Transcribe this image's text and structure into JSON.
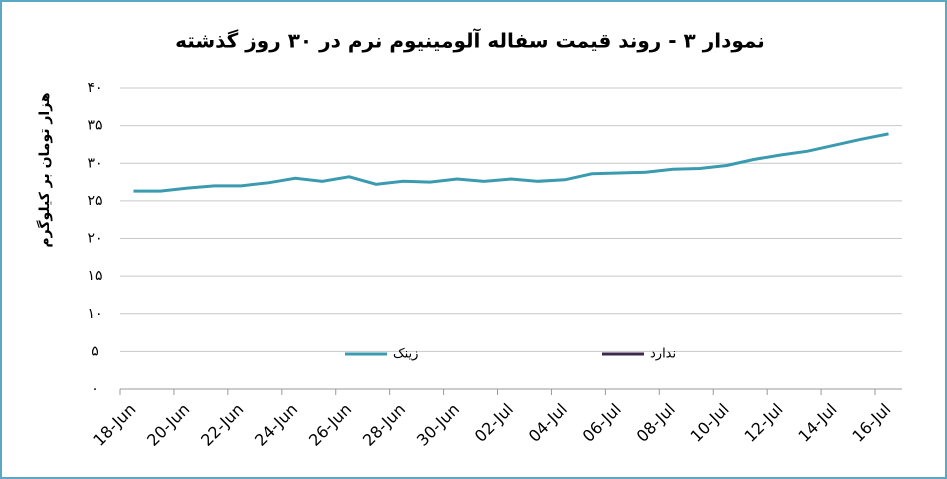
{
  "chart_data": {
    "type": "line",
    "title": "نمودار ۳ - روند قیمت سفاله آلومینیوم نرم در ۳۰ روز گذشته",
    "y_label": "هزار تومان بر کیلوگرم",
    "categories": [
      "18-Jun",
      null,
      "20-Jun",
      null,
      "22-Jun",
      null,
      "24-Jun",
      null,
      "26-Jun",
      null,
      "28-Jun",
      null,
      "30-Jun",
      null,
      "02-Jul",
      null,
      "04-Jul",
      null,
      "06-Jul",
      null,
      "08-Jul",
      null,
      "10-Jul",
      null,
      "12-Jul",
      null,
      "14-Jul",
      null,
      "16-Jul"
    ],
    "series": [
      {
        "name": "زینک",
        "color": "#3a9bb0",
        "values": [
          26.3,
          26.3,
          26.7,
          27.0,
          27.0,
          27.4,
          28.0,
          27.6,
          28.2,
          27.2,
          27.6,
          27.5,
          27.9,
          27.6,
          27.9,
          27.6,
          27.8,
          28.6,
          28.7,
          28.8,
          29.2,
          29.3,
          29.7,
          30.5,
          31.1,
          31.6,
          32.4,
          33.2,
          33.9
        ]
      },
      {
        "name": "ندارد",
        "color": "#3b2a4e",
        "values": [
          null,
          null,
          null,
          null,
          null,
          null,
          null,
          null,
          null,
          null,
          null,
          null,
          null,
          null,
          null,
          null,
          null,
          null,
          null,
          null,
          null,
          null,
          null,
          null,
          null,
          null,
          null,
          null,
          null
        ]
      }
    ],
    "ylim": [
      0,
      40
    ],
    "yticks": [
      {
        "value": 0,
        "label": "۰"
      },
      {
        "value": 5,
        "label": "۵"
      },
      {
        "value": 10,
        "label": "۱۰"
      },
      {
        "value": 15,
        "label": "۱۵"
      },
      {
        "value": 20,
        "label": "۲۰"
      },
      {
        "value": 25,
        "label": "۲۵"
      },
      {
        "value": 30,
        "label": "۳۰"
      },
      {
        "value": 35,
        "label": "۳۵"
      },
      {
        "value": 40,
        "label": "۴۰"
      }
    ],
    "grid": true
  }
}
